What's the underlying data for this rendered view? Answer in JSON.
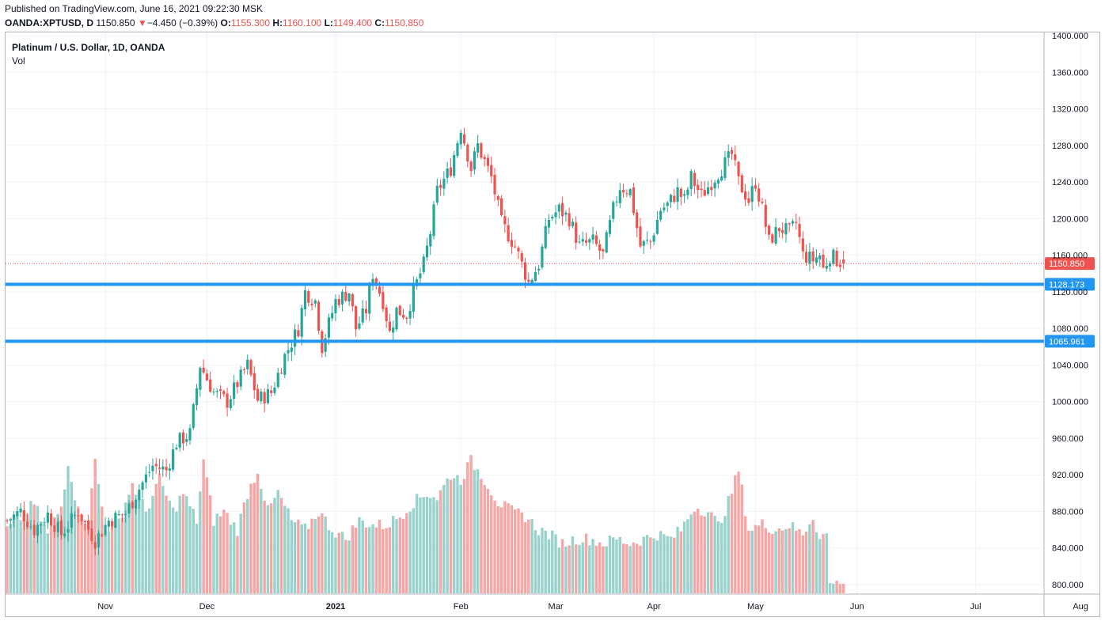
{
  "header": {
    "published": "Published on TradingView.com, June 16, 2021 09:22:30 MSK",
    "symbol": "OANDA:XPTUSD, D",
    "last": "1150.850",
    "change_arrow": "▼",
    "change": "−4.450 (−0.39%)",
    "o_label": "O:",
    "o": "1155.300",
    "h_label": "H:",
    "h": "1160.100",
    "l_label": "L:",
    "l": "1149.400",
    "c_label": "C:",
    "c": "1150.850"
  },
  "legend": {
    "title": "Platinum / U.S. Dollar, 1D, OANDA",
    "indicator": "Vol"
  },
  "colors": {
    "up": "#26a69a",
    "down": "#ef5350",
    "up_vol": "#99d2cc",
    "down_vol": "#f5a6a5",
    "hline": "#2196f3",
    "grid": "#f0f3fa"
  },
  "chart_data": {
    "type": "candlestick",
    "y_axis": {
      "min": 796,
      "max": 1400,
      "ticks": [
        "800.000",
        "840.000",
        "880.000",
        "920.000",
        "960.000",
        "1000.000",
        "1040.000",
        "1080.000",
        "1120.000",
        "1160.000",
        "1200.000",
        "1240.000",
        "1280.000",
        "1320.000",
        "1360.000",
        "1400.000"
      ]
    },
    "x_axis": {
      "labels": [
        "Nov",
        "Dec",
        "2021",
        "Feb",
        "Mar",
        "Apr",
        "May",
        "Jun",
        "Jul",
        "Aug"
      ],
      "label_days": [
        29,
        59,
        97,
        134,
        162,
        191,
        221,
        251,
        286,
        317
      ]
    },
    "last_price": {
      "value": 1150.85,
      "label": "1150.850"
    },
    "horizontal_lines": [
      {
        "value": 1128.173,
        "label": "1128.173"
      },
      {
        "value": 1065.961,
        "label": "1065.961"
      }
    ],
    "anchors": [
      [
        0,
        870
      ],
      [
        4,
        880
      ],
      [
        8,
        860
      ],
      [
        12,
        877
      ],
      [
        16,
        855
      ],
      [
        21,
        880
      ],
      [
        26,
        848
      ],
      [
        30,
        870
      ],
      [
        35,
        878
      ],
      [
        39,
        905
      ],
      [
        43,
        930
      ],
      [
        47,
        925
      ],
      [
        50,
        955
      ],
      [
        54,
        965
      ],
      [
        57,
        1040
      ],
      [
        61,
        1010
      ],
      [
        65,
        1000
      ],
      [
        71,
        1040
      ],
      [
        74,
        1002
      ],
      [
        78,
        1010
      ],
      [
        82,
        1050
      ],
      [
        86,
        1080
      ],
      [
        88,
        1120
      ],
      [
        91,
        1110
      ],
      [
        93,
        1060
      ],
      [
        95,
        1085
      ],
      [
        97,
        1110
      ],
      [
        101,
        1120
      ],
      [
        103,
        1080
      ],
      [
        106,
        1100
      ],
      [
        108,
        1140
      ],
      [
        111,
        1110
      ],
      [
        113,
        1075
      ],
      [
        115,
        1100
      ],
      [
        118,
        1095
      ],
      [
        120,
        1120
      ],
      [
        123,
        1150
      ],
      [
        125,
        1185
      ],
      [
        127,
        1230
      ],
      [
        131,
        1255
      ],
      [
        134,
        1300
      ],
      [
        137,
        1255
      ],
      [
        139,
        1280
      ],
      [
        143,
        1245
      ],
      [
        146,
        1195
      ],
      [
        150,
        1170
      ],
      [
        154,
        1130
      ],
      [
        157,
        1150
      ],
      [
        160,
        1200
      ],
      [
        163,
        1210
      ],
      [
        166,
        1200
      ],
      [
        169,
        1170
      ],
      [
        173,
        1175
      ],
      [
        176,
        1160
      ],
      [
        179,
        1210
      ],
      [
        181,
        1235
      ],
      [
        184,
        1230
      ],
      [
        187,
        1170
      ],
      [
        190,
        1175
      ],
      [
        193,
        1210
      ],
      [
        195,
        1215
      ],
      [
        198,
        1230
      ],
      [
        200,
        1220
      ],
      [
        202,
        1245
      ],
      [
        205,
        1225
      ],
      [
        208,
        1240
      ],
      [
        211,
        1255
      ],
      [
        214,
        1270
      ],
      [
        216,
        1240
      ],
      [
        219,
        1220
      ],
      [
        221,
        1240
      ],
      [
        223,
        1210
      ],
      [
        225,
        1175
      ],
      [
        228,
        1190
      ],
      [
        231,
        1185
      ],
      [
        233,
        1195
      ],
      [
        235,
        1160
      ],
      [
        238,
        1155
      ],
      [
        240,
        1160
      ],
      [
        241,
        1145
      ],
      [
        243,
        1160
      ],
      [
        245,
        1155
      ],
      [
        247,
        1150.85
      ]
    ],
    "volume_anchors": [
      [
        0,
        860
      ],
      [
        8,
        888
      ],
      [
        12,
        855
      ],
      [
        16,
        885
      ],
      [
        18,
        935
      ],
      [
        21,
        880
      ],
      [
        24,
        868
      ],
      [
        26,
        935
      ],
      [
        29,
        860
      ],
      [
        33,
        870
      ],
      [
        37,
        910
      ],
      [
        41,
        880
      ],
      [
        45,
        915
      ],
      [
        49,
        880
      ],
      [
        52,
        900
      ],
      [
        56,
        870
      ],
      [
        58,
        935
      ],
      [
        61,
        870
      ],
      [
        64,
        880
      ],
      [
        68,
        860
      ],
      [
        71,
        900
      ],
      [
        74,
        925
      ],
      [
        77,
        880
      ],
      [
        80,
        900
      ],
      [
        84,
        870
      ],
      [
        88,
        860
      ],
      [
        92,
        880
      ],
      [
        96,
        860
      ],
      [
        100,
        850
      ],
      [
        104,
        870
      ],
      [
        108,
        865
      ],
      [
        112,
        865
      ],
      [
        116,
        875
      ],
      [
        120,
        890
      ],
      [
        124,
        900
      ],
      [
        127,
        895
      ],
      [
        131,
        920
      ],
      [
        134,
        915
      ],
      [
        137,
        935
      ],
      [
        141,
        915
      ],
      [
        145,
        890
      ],
      [
        149,
        880
      ],
      [
        153,
        875
      ],
      [
        157,
        860
      ],
      [
        160,
        855
      ],
      [
        164,
        845
      ],
      [
        168,
        850
      ],
      [
        172,
        850
      ],
      [
        176,
        845
      ],
      [
        180,
        850
      ],
      [
        184,
        845
      ],
      [
        188,
        850
      ],
      [
        192,
        855
      ],
      [
        196,
        850
      ],
      [
        199,
        860
      ],
      [
        203,
        885
      ],
      [
        207,
        880
      ],
      [
        210,
        865
      ],
      [
        213,
        890
      ],
      [
        216,
        925
      ],
      [
        219,
        860
      ],
      [
        223,
        866
      ],
      [
        227,
        860
      ],
      [
        231,
        865
      ],
      [
        235,
        855
      ],
      [
        238,
        875
      ],
      [
        240,
        850
      ],
      [
        242,
        856
      ],
      [
        243,
        800
      ]
    ]
  }
}
